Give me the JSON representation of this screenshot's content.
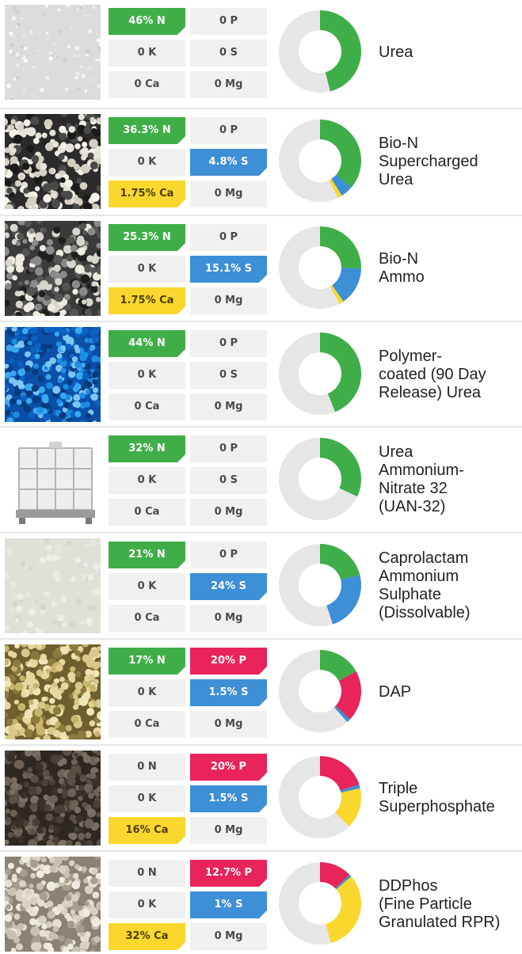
{
  "colors": {
    "nitrogen": "#3fae48",
    "phosphorus": "#e8245a",
    "sulphur": "#3d8fd6",
    "calcium": "#fad72d",
    "badge_empty": "#f0f0f0",
    "donut_rest": "#e6e6e6"
  },
  "products": [
    {
      "name_lines": [
        "Urea"
      ],
      "image": "urea-granules-white",
      "badges": {
        "n": "46% N",
        "p": "0 P",
        "k": "0 K",
        "s": "0 S",
        "ca": "0 Ca",
        "mg": "0 Mg"
      },
      "chart_data": {
        "type": "pie",
        "segments": [
          {
            "label": "N",
            "value": 46
          }
        ]
      }
    },
    {
      "name_lines": [
        "Bio-N",
        "Supercharged",
        "Urea"
      ],
      "image": "granules-black-and-white",
      "badges": {
        "n": "36.3% N",
        "p": "0 P",
        "k": "0 K",
        "s": "4.8% S",
        "ca": "1.75% Ca",
        "mg": "0 Mg"
      },
      "chart_data": {
        "type": "pie",
        "segments": [
          {
            "label": "N",
            "value": 36.3
          },
          {
            "label": "S",
            "value": 4.8
          },
          {
            "label": "Ca",
            "value": 1.75
          }
        ]
      }
    },
    {
      "name_lines": [
        "Bio-N",
        "Ammo"
      ],
      "image": "granules-dark-grey",
      "badges": {
        "n": "25.3% N",
        "p": "0 P",
        "k": "0 K",
        "s": "15.1% S",
        "ca": "1.75% Ca",
        "mg": "0 Mg"
      },
      "chart_data": {
        "type": "pie",
        "segments": [
          {
            "label": "N",
            "value": 25.3
          },
          {
            "label": "S",
            "value": 15.1
          },
          {
            "label": "Ca",
            "value": 1.75
          }
        ]
      }
    },
    {
      "name_lines": [
        "Polymer-",
        "coated (90 Day",
        "Release) Urea"
      ],
      "image": "granules-blue",
      "badges": {
        "n": "44% N",
        "p": "0 P",
        "k": "0 K",
        "s": "0 S",
        "ca": "0 Ca",
        "mg": "0 Mg"
      },
      "chart_data": {
        "type": "pie",
        "segments": [
          {
            "label": "N",
            "value": 44
          }
        ]
      }
    },
    {
      "name_lines": [
        "Urea",
        "Ammonium-",
        "Nitrate 32",
        "(UAN-32)"
      ],
      "image": "ibc-liquid-tote",
      "badges": {
        "n": "32% N",
        "p": "0 P",
        "k": "0 K",
        "s": "0 S",
        "ca": "0 Ca",
        "mg": "0 Mg"
      },
      "chart_data": {
        "type": "pie",
        "segments": [
          {
            "label": "N",
            "value": 32
          }
        ]
      }
    },
    {
      "name_lines": [
        "Caprolactam",
        "Ammonium",
        "Sulphate",
        "(Dissolvable)"
      ],
      "image": "crystals-off-white",
      "badges": {
        "n": "21% N",
        "p": "0 P",
        "k": "0 K",
        "s": "24% S",
        "ca": "0 Ca",
        "mg": "0 Mg"
      },
      "chart_data": {
        "type": "pie",
        "segments": [
          {
            "label": "N",
            "value": 21
          },
          {
            "label": "S",
            "value": 24
          }
        ]
      }
    },
    {
      "name_lines": [
        "DAP"
      ],
      "image": "granules-tan",
      "badges": {
        "n": "17% N",
        "p": "20% P",
        "k": "0 K",
        "s": "1.5% S",
        "ca": "0 Ca",
        "mg": "0 Mg"
      },
      "chart_data": {
        "type": "pie",
        "segments": [
          {
            "label": "N",
            "value": 17
          },
          {
            "label": "P",
            "value": 20
          },
          {
            "label": "S",
            "value": 1.5
          }
        ]
      }
    },
    {
      "name_lines": [
        "Triple",
        "Superphosphate"
      ],
      "image": "granules-dark-brown",
      "badges": {
        "n": "0 N",
        "p": "20% P",
        "k": "0 K",
        "s": "1.5% S",
        "ca": "16% Ca",
        "mg": "0 Mg"
      },
      "chart_data": {
        "type": "pie",
        "segments": [
          {
            "label": "P",
            "value": 20
          },
          {
            "label": "S",
            "value": 1.5
          },
          {
            "label": "Ca",
            "value": 16
          }
        ]
      }
    },
    {
      "name_lines": [
        "DDPhos",
        "(Fine Particle",
        "Granulated RPR)"
      ],
      "image": "granules-beige",
      "badges": {
        "n": "0 N",
        "p": "12.7% P",
        "k": "0 K",
        "s": "1% S",
        "ca": "32% Ca",
        "mg": "0 Mg"
      },
      "chart_data": {
        "type": "pie",
        "segments": [
          {
            "label": "P",
            "value": 12.7
          },
          {
            "label": "S",
            "value": 1
          },
          {
            "label": "Ca",
            "value": 32
          }
        ]
      }
    }
  ]
}
